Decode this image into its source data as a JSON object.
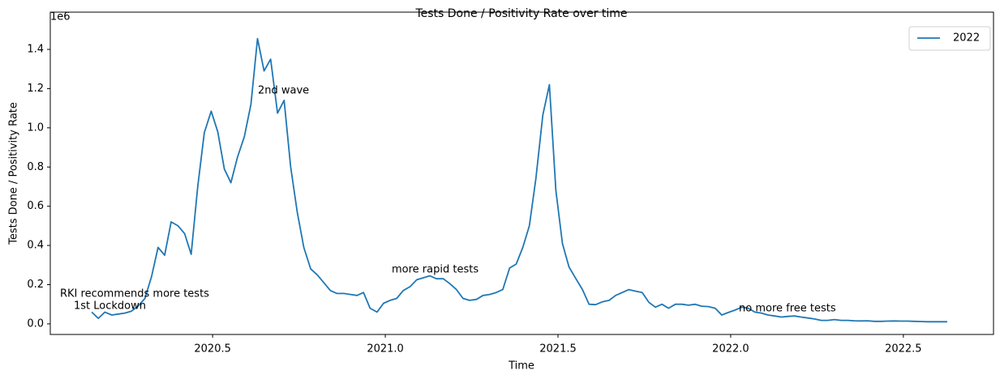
{
  "chart_data": {
    "type": "line",
    "title": "Tests Done / Positivity Rate over time",
    "xlabel": "Time",
    "ylabel": "Tests Done / Positivity Rate",
    "y_offset_text": "1e6",
    "legend": "upper right",
    "x": [
      2020.15,
      2020.169,
      2020.188,
      2020.208,
      2020.227,
      2020.246,
      2020.265,
      2020.284,
      2020.304,
      2020.323,
      2020.342,
      2020.361,
      2020.38,
      2020.4,
      2020.419,
      2020.438,
      2020.457,
      2020.476,
      2020.496,
      2020.515,
      2020.534,
      2020.553,
      2020.572,
      2020.592,
      2020.611,
      2020.63,
      2020.649,
      2020.668,
      2020.688,
      2020.707,
      2020.726,
      2020.745,
      2020.764,
      2020.784,
      2020.803,
      2020.822,
      2020.841,
      2020.86,
      2020.88,
      2020.899,
      2020.918,
      2020.937,
      2020.956,
      2020.976,
      2020.995,
      2021.014,
      2021.033,
      2021.052,
      2021.072,
      2021.091,
      2021.11,
      2021.129,
      2021.148,
      2021.168,
      2021.187,
      2021.206,
      2021.225,
      2021.244,
      2021.264,
      2021.283,
      2021.302,
      2021.321,
      2021.34,
      2021.36,
      2021.379,
      2021.398,
      2021.417,
      2021.436,
      2021.456,
      2021.475,
      2021.494,
      2021.513,
      2021.532,
      2021.552,
      2021.571,
      2021.59,
      2021.609,
      2021.628,
      2021.648,
      2021.667,
      2021.686,
      2021.705,
      2021.724,
      2021.744,
      2021.763,
      2021.782,
      2021.801,
      2021.82,
      2021.84,
      2021.859,
      2021.878,
      2021.897,
      2021.916,
      2021.936,
      2021.955,
      2021.974,
      2021.993,
      2022.012,
      2022.032,
      2022.051,
      2022.07,
      2022.089,
      2022.108,
      2022.128,
      2022.147,
      2022.166,
      2022.185,
      2022.204,
      2022.224,
      2022.243,
      2022.262,
      2022.281,
      2022.3,
      2022.32,
      2022.339,
      2022.358,
      2022.377,
      2022.396,
      2022.416,
      2022.435,
      2022.454,
      2022.473,
      2022.492,
      2022.512,
      2022.531,
      2022.55,
      2022.569,
      2022.588,
      2022.608,
      2022.627
    ],
    "series": [
      {
        "name": "2022",
        "color": "#1f77b4",
        "values": [
          0.06,
          0.028,
          0.06,
          0.045,
          0.05,
          0.055,
          0.065,
          0.09,
          0.13,
          0.24,
          0.39,
          0.35,
          0.52,
          0.5,
          0.46,
          0.355,
          0.7,
          0.975,
          1.085,
          0.98,
          0.79,
          0.72,
          0.85,
          0.955,
          1.12,
          1.455,
          1.29,
          1.35,
          1.075,
          1.14,
          0.8,
          0.57,
          0.39,
          0.28,
          0.25,
          0.21,
          0.17,
          0.155,
          0.155,
          0.15,
          0.145,
          0.16,
          0.08,
          0.06,
          0.105,
          0.12,
          0.13,
          0.17,
          0.19,
          0.225,
          0.235,
          0.245,
          0.23,
          0.23,
          0.205,
          0.175,
          0.13,
          0.12,
          0.125,
          0.145,
          0.15,
          0.16,
          0.175,
          0.285,
          0.305,
          0.39,
          0.5,
          0.74,
          1.065,
          1.22,
          0.68,
          0.41,
          0.29,
          0.23,
          0.175,
          0.1,
          0.098,
          0.112,
          0.12,
          0.145,
          0.16,
          0.175,
          0.167,
          0.16,
          0.11,
          0.085,
          0.1,
          0.08,
          0.1,
          0.1,
          0.095,
          0.1,
          0.09,
          0.088,
          0.08,
          0.045,
          0.058,
          0.07,
          0.085,
          0.08,
          0.06,
          0.055,
          0.045,
          0.04,
          0.035,
          0.038,
          0.04,
          0.035,
          0.03,
          0.025,
          0.018,
          0.018,
          0.022,
          0.018,
          0.018,
          0.016,
          0.015,
          0.016,
          0.013,
          0.013,
          0.014,
          0.015,
          0.014,
          0.014,
          0.013,
          0.012,
          0.011,
          0.011,
          0.011,
          0.011
        ]
      }
    ],
    "annotations": [
      "RKI recommends more tests",
      "1st Lockdown",
      "2nd wave",
      "more rapid tests",
      "no more free tests"
    ],
    "xlim": [
      2020.03,
      2022.761
    ],
    "ylim": [
      -0.054,
      1.59
    ],
    "xticks": [
      2020.5,
      {
        "value": 2021,
        "label": "2021.0"
      },
      2021.5,
      {
        "value": 2022,
        "label": "2022.0"
      },
      2022.5
    ],
    "yticks": [
      {
        "value": 0,
        "label": "0.0"
      },
      0.2,
      0.4,
      0.6,
      0.8,
      {
        "value": 1,
        "label": "1.0"
      },
      1.2,
      1.4
    ]
  }
}
